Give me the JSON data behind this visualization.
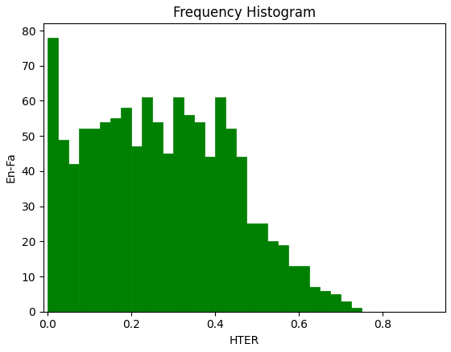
{
  "title": "Frequency Histogram",
  "xlabel": "HTER",
  "ylabel": "En-Fa",
  "bar_color": "#008000",
  "bar_edge_color": "#008000",
  "xlim": [
    -0.01,
    0.95
  ],
  "ylim": [
    0,
    82
  ],
  "yticks": [
    0,
    10,
    20,
    30,
    40,
    50,
    60,
    70,
    80
  ],
  "xticks": [
    0.0,
    0.2,
    0.4,
    0.6,
    0.8
  ],
  "bin_width": 0.025,
  "bin_lefts": [
    0.0,
    0.025,
    0.05,
    0.075,
    0.1,
    0.125,
    0.15,
    0.175,
    0.2,
    0.225,
    0.25,
    0.275,
    0.3,
    0.325,
    0.35,
    0.375,
    0.4,
    0.425,
    0.45,
    0.475,
    0.5,
    0.525,
    0.55,
    0.575,
    0.6,
    0.625,
    0.65,
    0.675,
    0.7,
    0.725,
    0.75,
    0.775,
    0.8,
    0.825,
    0.85,
    0.875,
    0.9,
    0.925
  ],
  "bar_heights": [
    78,
    49,
    42,
    52,
    52,
    54,
    55,
    58,
    47,
    61,
    54,
    45,
    61,
    56,
    54,
    44,
    61,
    52,
    44,
    25,
    25,
    20,
    19,
    13,
    13,
    7,
    6,
    5,
    3,
    1,
    0,
    0,
    0,
    0,
    0,
    0,
    0,
    0
  ],
  "title_fontsize": 12,
  "label_fontsize": 10,
  "figsize": [
    5.6,
    4.38
  ],
  "dpi": 100
}
